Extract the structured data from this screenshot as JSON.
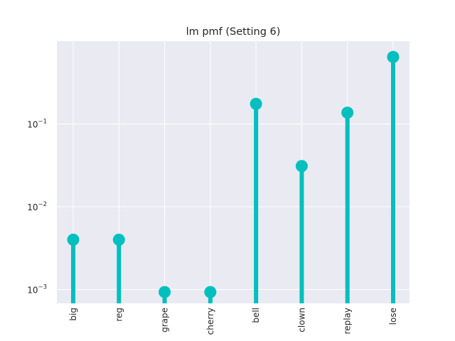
{
  "chart_data": {
    "type": "stem",
    "title": "lm pmf (Setting 6)",
    "xlabel": "",
    "ylabel": "",
    "yscale": "log",
    "ylim": [
      0.00068,
      1.0
    ],
    "yticks": [
      {
        "base": "10",
        "exp": "−3",
        "value": 0.001
      },
      {
        "base": "10",
        "exp": "−2",
        "value": 0.01
      },
      {
        "base": "10",
        "exp": "−1",
        "value": 0.1
      }
    ],
    "categories": [
      "big",
      "reg",
      "grape",
      "cherry",
      "bell",
      "clown",
      "replay",
      "lose"
    ],
    "values": [
      0.004,
      0.004,
      0.00093,
      0.00093,
      0.175,
      0.031,
      0.137,
      0.645
    ],
    "grid": true,
    "color": "#00BFBF",
    "background": "#EAEAF2"
  }
}
